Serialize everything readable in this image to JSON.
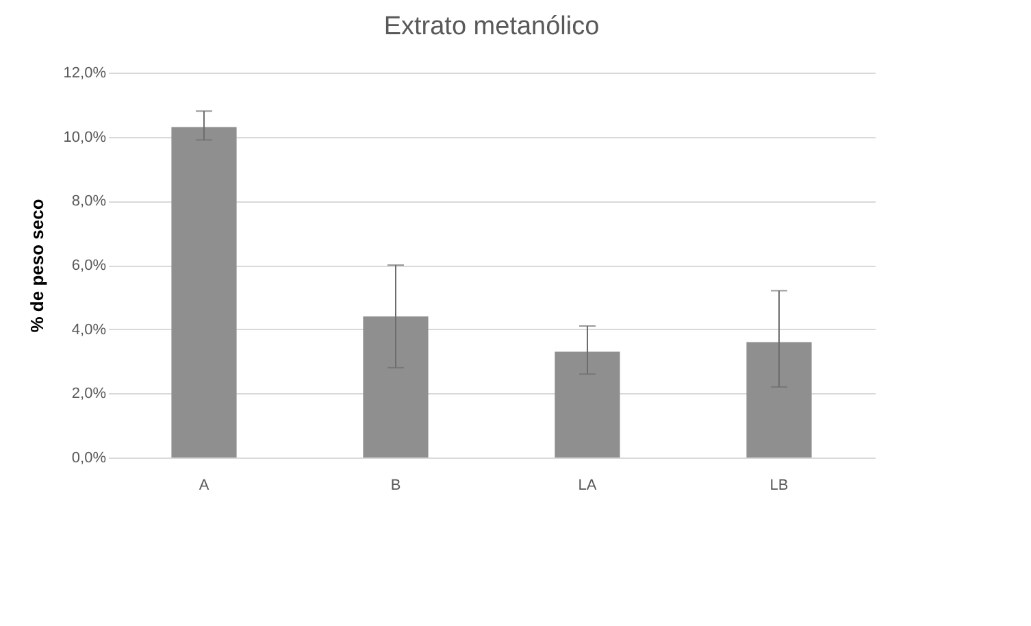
{
  "chart_data": {
    "type": "bar",
    "title": "Extrato metanólico",
    "ylabel": "% de peso seco",
    "categories": [
      "A",
      "B",
      "LA",
      "LB"
    ],
    "values": [
      10.3,
      4.4,
      3.3,
      3.6
    ],
    "errors": [
      [
        9.9,
        10.8
      ],
      [
        2.8,
        6.0
      ],
      [
        2.6,
        4.1
      ],
      [
        2.2,
        5.2
      ]
    ],
    "color": "#8f8f8f",
    "ylim": [
      0,
      12
    ],
    "yticks": [
      {
        "value": 0,
        "label": "0,0%"
      },
      {
        "value": 2,
        "label": "2,0%"
      },
      {
        "value": 4,
        "label": "4,0%"
      },
      {
        "value": 6,
        "label": "6,0%"
      },
      {
        "value": 8,
        "label": "8,0%"
      },
      {
        "value": 10,
        "label": "10,0%"
      },
      {
        "value": 12,
        "label": "12,0%"
      }
    ],
    "grid": "y"
  }
}
